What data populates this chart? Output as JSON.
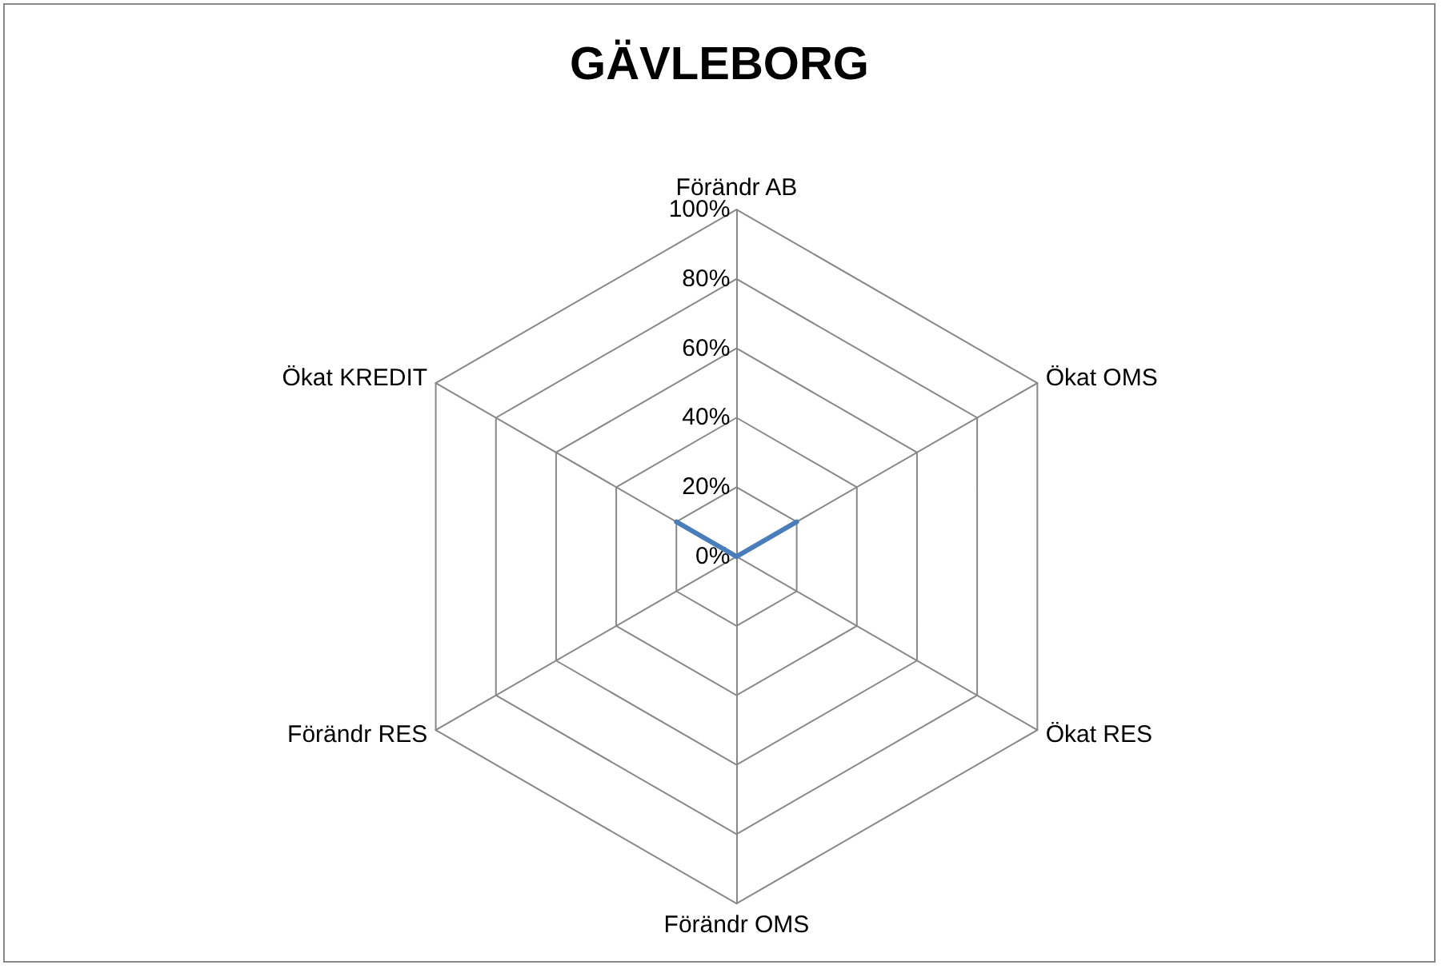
{
  "chart_data": {
    "type": "radar",
    "title": "GÄVLEBORG",
    "categories": [
      "Förändr AB",
      "Ökat OMS",
      "Ökat RES",
      "Förändr OMS",
      "Förändr RES",
      "Ökat KREDIT"
    ],
    "series": [
      {
        "color": "#4a7ebb",
        "values": [
          0,
          20,
          0,
          0,
          0,
          20
        ]
      }
    ],
    "ylim": [
      0,
      100
    ],
    "yticks": [
      {
        "value": 0,
        "label": "0%"
      },
      {
        "value": 20,
        "label": "20%"
      },
      {
        "value": 40,
        "label": "40%"
      },
      {
        "value": 60,
        "label": "60%"
      },
      {
        "value": 80,
        "label": "80%"
      },
      {
        "value": 100,
        "label": "100%"
      }
    ],
    "marker": "none",
    "line_style": "solid"
  }
}
